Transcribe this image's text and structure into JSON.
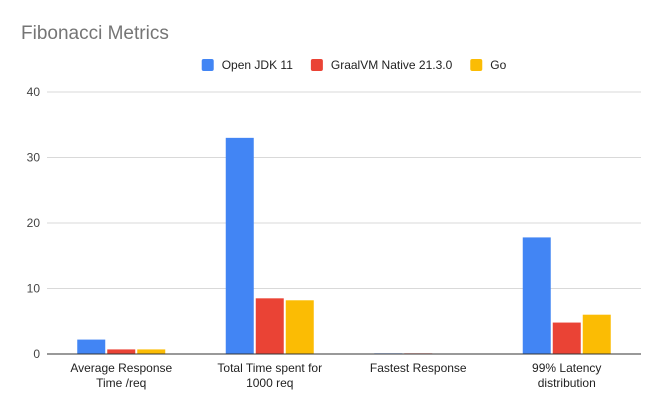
{
  "chart_data": {
    "type": "bar",
    "title": "Fibonacci Metrics",
    "categories": [
      [
        "Average Response",
        "Time /req"
      ],
      [
        "Total Time spent for",
        "1000 req"
      ],
      [
        "Fastest Response"
      ],
      [
        "99% Latency",
        "distribution"
      ]
    ],
    "series": [
      {
        "name": "Open JDK 11",
        "color": "#4285F4",
        "values": [
          2.2,
          33.0,
          0.1,
          17.8
        ]
      },
      {
        "name": "GraalVM Native 21.3.0",
        "color": "#EA4335",
        "values": [
          0.7,
          8.5,
          0.1,
          4.8
        ]
      },
      {
        "name": "Go",
        "color": "#FBBC04",
        "values": [
          0.7,
          8.2,
          0.05,
          6.0
        ]
      }
    ],
    "ylim": [
      0,
      40
    ],
    "yticks": [
      0,
      10,
      20,
      30,
      40
    ],
    "grid": true,
    "legend": "top-center"
  }
}
